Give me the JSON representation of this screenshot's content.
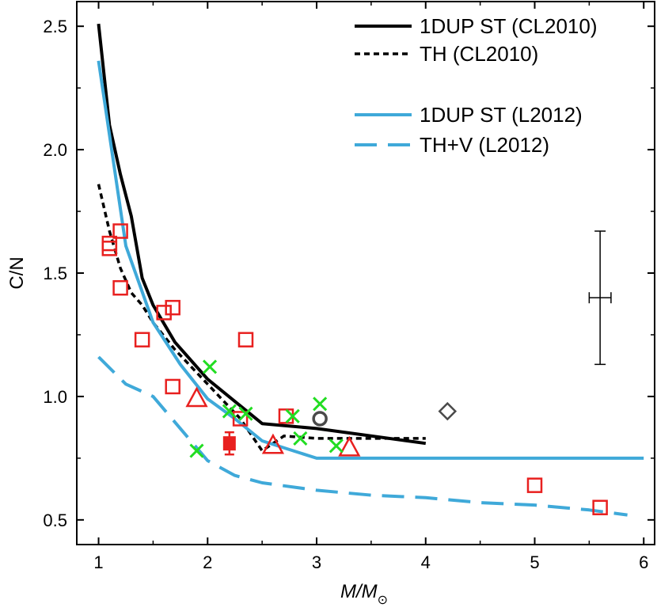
{
  "chart_data": {
    "type": "scatter",
    "title": "",
    "xlabel_main": "M/M",
    "xlabel_sub": "⊙",
    "ylabel": "C/N",
    "xlim": [
      0.8,
      6.1
    ],
    "ylim": [
      0.4,
      2.6
    ],
    "x_ticks": [
      1,
      2,
      3,
      4,
      5,
      6
    ],
    "y_ticks": [
      0.5,
      1.0,
      1.5,
      2.0,
      2.5
    ],
    "x_tick_labels": [
      "1",
      "2",
      "3",
      "4",
      "5",
      "6"
    ],
    "y_tick_labels": [
      "0.5",
      "1.0",
      "1.5",
      "2.0",
      "2.5"
    ],
    "legend_position": "top-right",
    "colors": {
      "black": "#000000",
      "blue": "#3fa9d9",
      "red": "#e8201f",
      "green": "#22dd22",
      "gray": "#4a4a4a"
    },
    "lines": [
      {
        "name": "1DUP ST (CL2010)",
        "style": "solid",
        "color": "black",
        "x": [
          1.0,
          1.1,
          1.2,
          1.3,
          1.4,
          1.5,
          1.7,
          2.0,
          2.5,
          3.0,
          4.0
        ],
        "y": [
          2.51,
          2.1,
          1.9,
          1.73,
          1.48,
          1.37,
          1.22,
          1.07,
          0.89,
          0.87,
          0.81
        ]
      },
      {
        "name": "TH (CL2010)",
        "style": "dotted",
        "color": "black",
        "x": [
          1.0,
          1.1,
          1.2,
          1.3,
          1.4,
          1.5,
          1.7,
          2.0,
          2.3,
          2.5,
          2.7,
          3.0,
          4.0
        ],
        "y": [
          1.86,
          1.67,
          1.52,
          1.42,
          1.37,
          1.3,
          1.19,
          1.05,
          0.91,
          0.78,
          0.84,
          0.83,
          0.83
        ]
      },
      {
        "name": "1DUP ST (L2012)",
        "style": "solid",
        "color": "blue",
        "x": [
          1.0,
          1.25,
          1.5,
          1.75,
          2.0,
          2.25,
          2.5,
          3.0,
          3.5,
          4.0,
          4.5,
          5.0,
          6.0
        ],
        "y": [
          2.36,
          1.61,
          1.3,
          1.13,
          0.99,
          0.91,
          0.82,
          0.75,
          0.75,
          0.75,
          0.75,
          0.75,
          0.75
        ]
      },
      {
        "name": "TH+V (L2012)",
        "style": "dashed",
        "color": "blue",
        "x": [
          1.0,
          1.25,
          1.5,
          1.75,
          2.0,
          2.25,
          2.5,
          3.0,
          3.5,
          4.0,
          4.5,
          5.0,
          5.5,
          5.85
        ],
        "y": [
          1.16,
          1.05,
          1.0,
          0.87,
          0.74,
          0.68,
          0.65,
          0.62,
          0.6,
          0.59,
          0.57,
          0.56,
          0.54,
          0.52
        ]
      }
    ],
    "points": {
      "red_squares": [
        [
          1.1,
          1.62
        ],
        [
          1.1,
          1.6
        ],
        [
          1.2,
          1.67
        ],
        [
          1.2,
          1.44
        ],
        [
          1.4,
          1.23
        ],
        [
          1.6,
          1.34
        ],
        [
          1.68,
          1.36
        ],
        [
          1.68,
          1.04
        ],
        [
          2.3,
          0.91
        ],
        [
          2.35,
          1.23
        ],
        [
          2.72,
          0.92
        ],
        [
          5.0,
          0.64
        ],
        [
          5.6,
          0.55
        ]
      ],
      "red_triangles": [
        [
          1.9,
          0.99
        ],
        [
          2.6,
          0.8
        ],
        [
          3.3,
          0.79
        ]
      ],
      "green_crosses": [
        [
          1.9,
          0.78
        ],
        [
          2.02,
          1.12
        ],
        [
          2.2,
          0.94
        ],
        [
          2.35,
          0.93
        ],
        [
          2.78,
          0.92
        ],
        [
          2.85,
          0.83
        ],
        [
          3.03,
          0.97
        ],
        [
          3.18,
          0.8
        ]
      ],
      "gray_circles": [
        [
          3.03,
          0.91
        ]
      ],
      "gray_diamonds": [
        [
          4.2,
          0.94
        ]
      ],
      "red_filled_squares": [
        {
          "x": 2.2,
          "y": 0.81,
          "yerr": 0.045
        }
      ]
    },
    "error_bar_sample": {
      "x": 5.6,
      "y": 1.4,
      "xerr": 0.1,
      "yerr": 0.27
    }
  }
}
